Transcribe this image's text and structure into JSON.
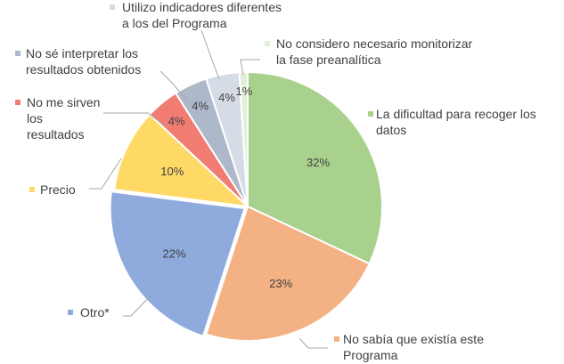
{
  "chart_data": {
    "type": "pie",
    "title": "",
    "slices": [
      {
        "name": "La dificultad para recoger los datos",
        "label_lines": [
          "La dificultad para recoger los",
          "datos"
        ],
        "value": 32,
        "value_label": "32%",
        "color": "#a9d18e"
      },
      {
        "name": "No sabía que existía este Programa",
        "label_lines": [
          "No sabía que existía este",
          "Programa"
        ],
        "value": 23,
        "value_label": "23%",
        "color": "#f4b183"
      },
      {
        "name": "Otro*",
        "label_lines": [
          "Otro*"
        ],
        "value": 22,
        "value_label": "22%",
        "color": "#8faadc"
      },
      {
        "name": "Precio",
        "label_lines": [
          "Precio"
        ],
        "value": 10,
        "value_label": "10%",
        "color": "#ffd966"
      },
      {
        "name": "No me sirven los resultados",
        "label_lines": [
          "No me sirven",
          "los",
          "resultados"
        ],
        "value": 4,
        "value_label": "4%",
        "color": "#f07c72"
      },
      {
        "name": "No sé interpretar los resultados obtenidos",
        "label_lines": [
          "No sé interpretar los",
          "resultados obtenidos"
        ],
        "value": 4,
        "value_label": "4%",
        "color": "#adb9ca"
      },
      {
        "name": "Utilizo indicadores diferentes a los del Programa",
        "label_lines": [
          "Utilizo indicadores diferentes",
          "a los del Programa"
        ],
        "value": 4,
        "value_label": "4%",
        "color": "#d6dce5"
      },
      {
        "name": "No considero necesario monitorizar la fase preanalítica",
        "label_lines": [
          "No considero necesario monitorizar",
          "la fase preanalítica"
        ],
        "value": 1,
        "value_label": "1%",
        "color": "#e2f0d9"
      }
    ]
  }
}
